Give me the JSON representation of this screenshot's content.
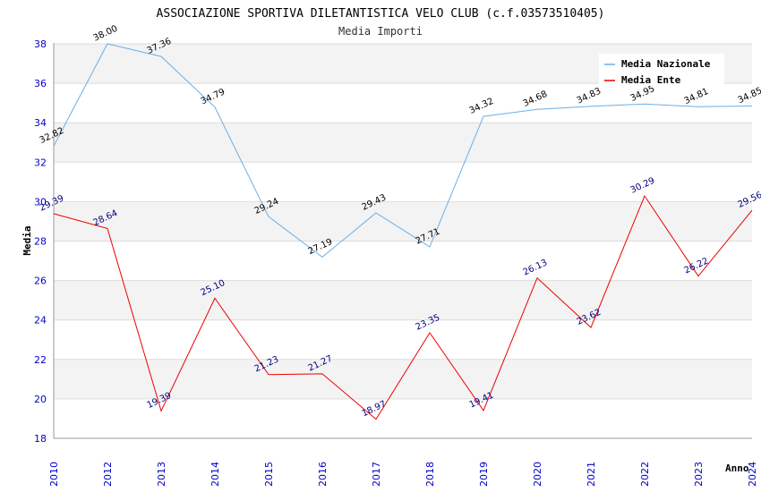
{
  "chart_data": {
    "type": "line",
    "title": "ASSOCIAZIONE SPORTIVA DILETANTISTICA VELO CLUB (c.f.03573510405)",
    "subtitle": "Media Importi",
    "xlabel": "Anno",
    "ylabel": "Media",
    "ylim": [
      18,
      38
    ],
    "yticks": [
      "18",
      "20",
      "22",
      "24",
      "26",
      "28",
      "30",
      "32",
      "34",
      "36",
      "38"
    ],
    "categories": [
      "2010",
      "2012",
      "2013",
      "2014",
      "2015",
      "2016",
      "2017",
      "2018",
      "2019",
      "2020",
      "2021",
      "2022",
      "2023",
      "2024"
    ],
    "legend_position": "top-right",
    "series": [
      {
        "name": "Media Nazionale",
        "color": "#6aaee8",
        "label_color": "#000000",
        "values": [
          32.82,
          38.0,
          37.36,
          34.79,
          29.24,
          27.19,
          29.43,
          27.71,
          34.32,
          34.68,
          34.83,
          34.95,
          34.81,
          34.85
        ],
        "labels": [
          "32.82",
          "38.00",
          "37.36",
          "34.79",
          "29.24",
          "27.19",
          "29.43",
          "27.71",
          "34.32",
          "34.68",
          "34.83",
          "34.95",
          "34.81",
          "34.85"
        ]
      },
      {
        "name": "Media Ente",
        "color": "#ee0000",
        "label_color": "#000080",
        "values": [
          29.39,
          28.64,
          19.39,
          25.1,
          21.23,
          21.27,
          18.97,
          23.35,
          19.41,
          26.13,
          23.62,
          30.29,
          26.22,
          29.56
        ],
        "labels": [
          "29.39",
          "28.64",
          "19.39",
          "25.10",
          "21.23",
          "21.27",
          "18.97",
          "23.35",
          "19.41",
          "26.13",
          "23.62",
          "30.29",
          "26.22",
          "29.56"
        ]
      }
    ]
  }
}
